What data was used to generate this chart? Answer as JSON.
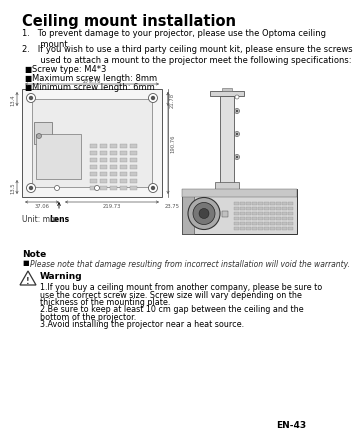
{
  "title": "Ceiling mount installation",
  "item1": "1.   To prevent damage to your projector, please use the Optoma ceiling\n       mount.",
  "item2": "2.   If you wish to use a third party ceiling mount kit, please ensure the screws\n       used to attach a mount to the projector meet the following specifications:",
  "bullet1": "Screw type: M4*3",
  "bullet2": "Maximum screw length: 8mm",
  "bullet3": "Minimum screw length: 6mm",
  "unit_text": "Unit: mm",
  "note_title": "Note",
  "note_bullet": "Please note that damage resulting from incorrect installation will void the warranty.",
  "warning_title": "Warning",
  "warn1": "1.If you buy a ceiling mount from another company, please be sure to\nuse the correct screw size. Screw size will vary depending on the\nthickness of the mounting plate.",
  "warn2": "2.Be sure to keep at least 10 cm gap between the ceiling and the\nbottom of the projector.",
  "warn3": "3.Avoid installing the projector near a heat source.",
  "page_num": "EN-43",
  "bg": "#ffffff",
  "black": "#000000",
  "gray_light": "#e8e8e8",
  "gray_mid": "#cccccc",
  "gray_dark": "#888888",
  "dim_color": "#555555"
}
